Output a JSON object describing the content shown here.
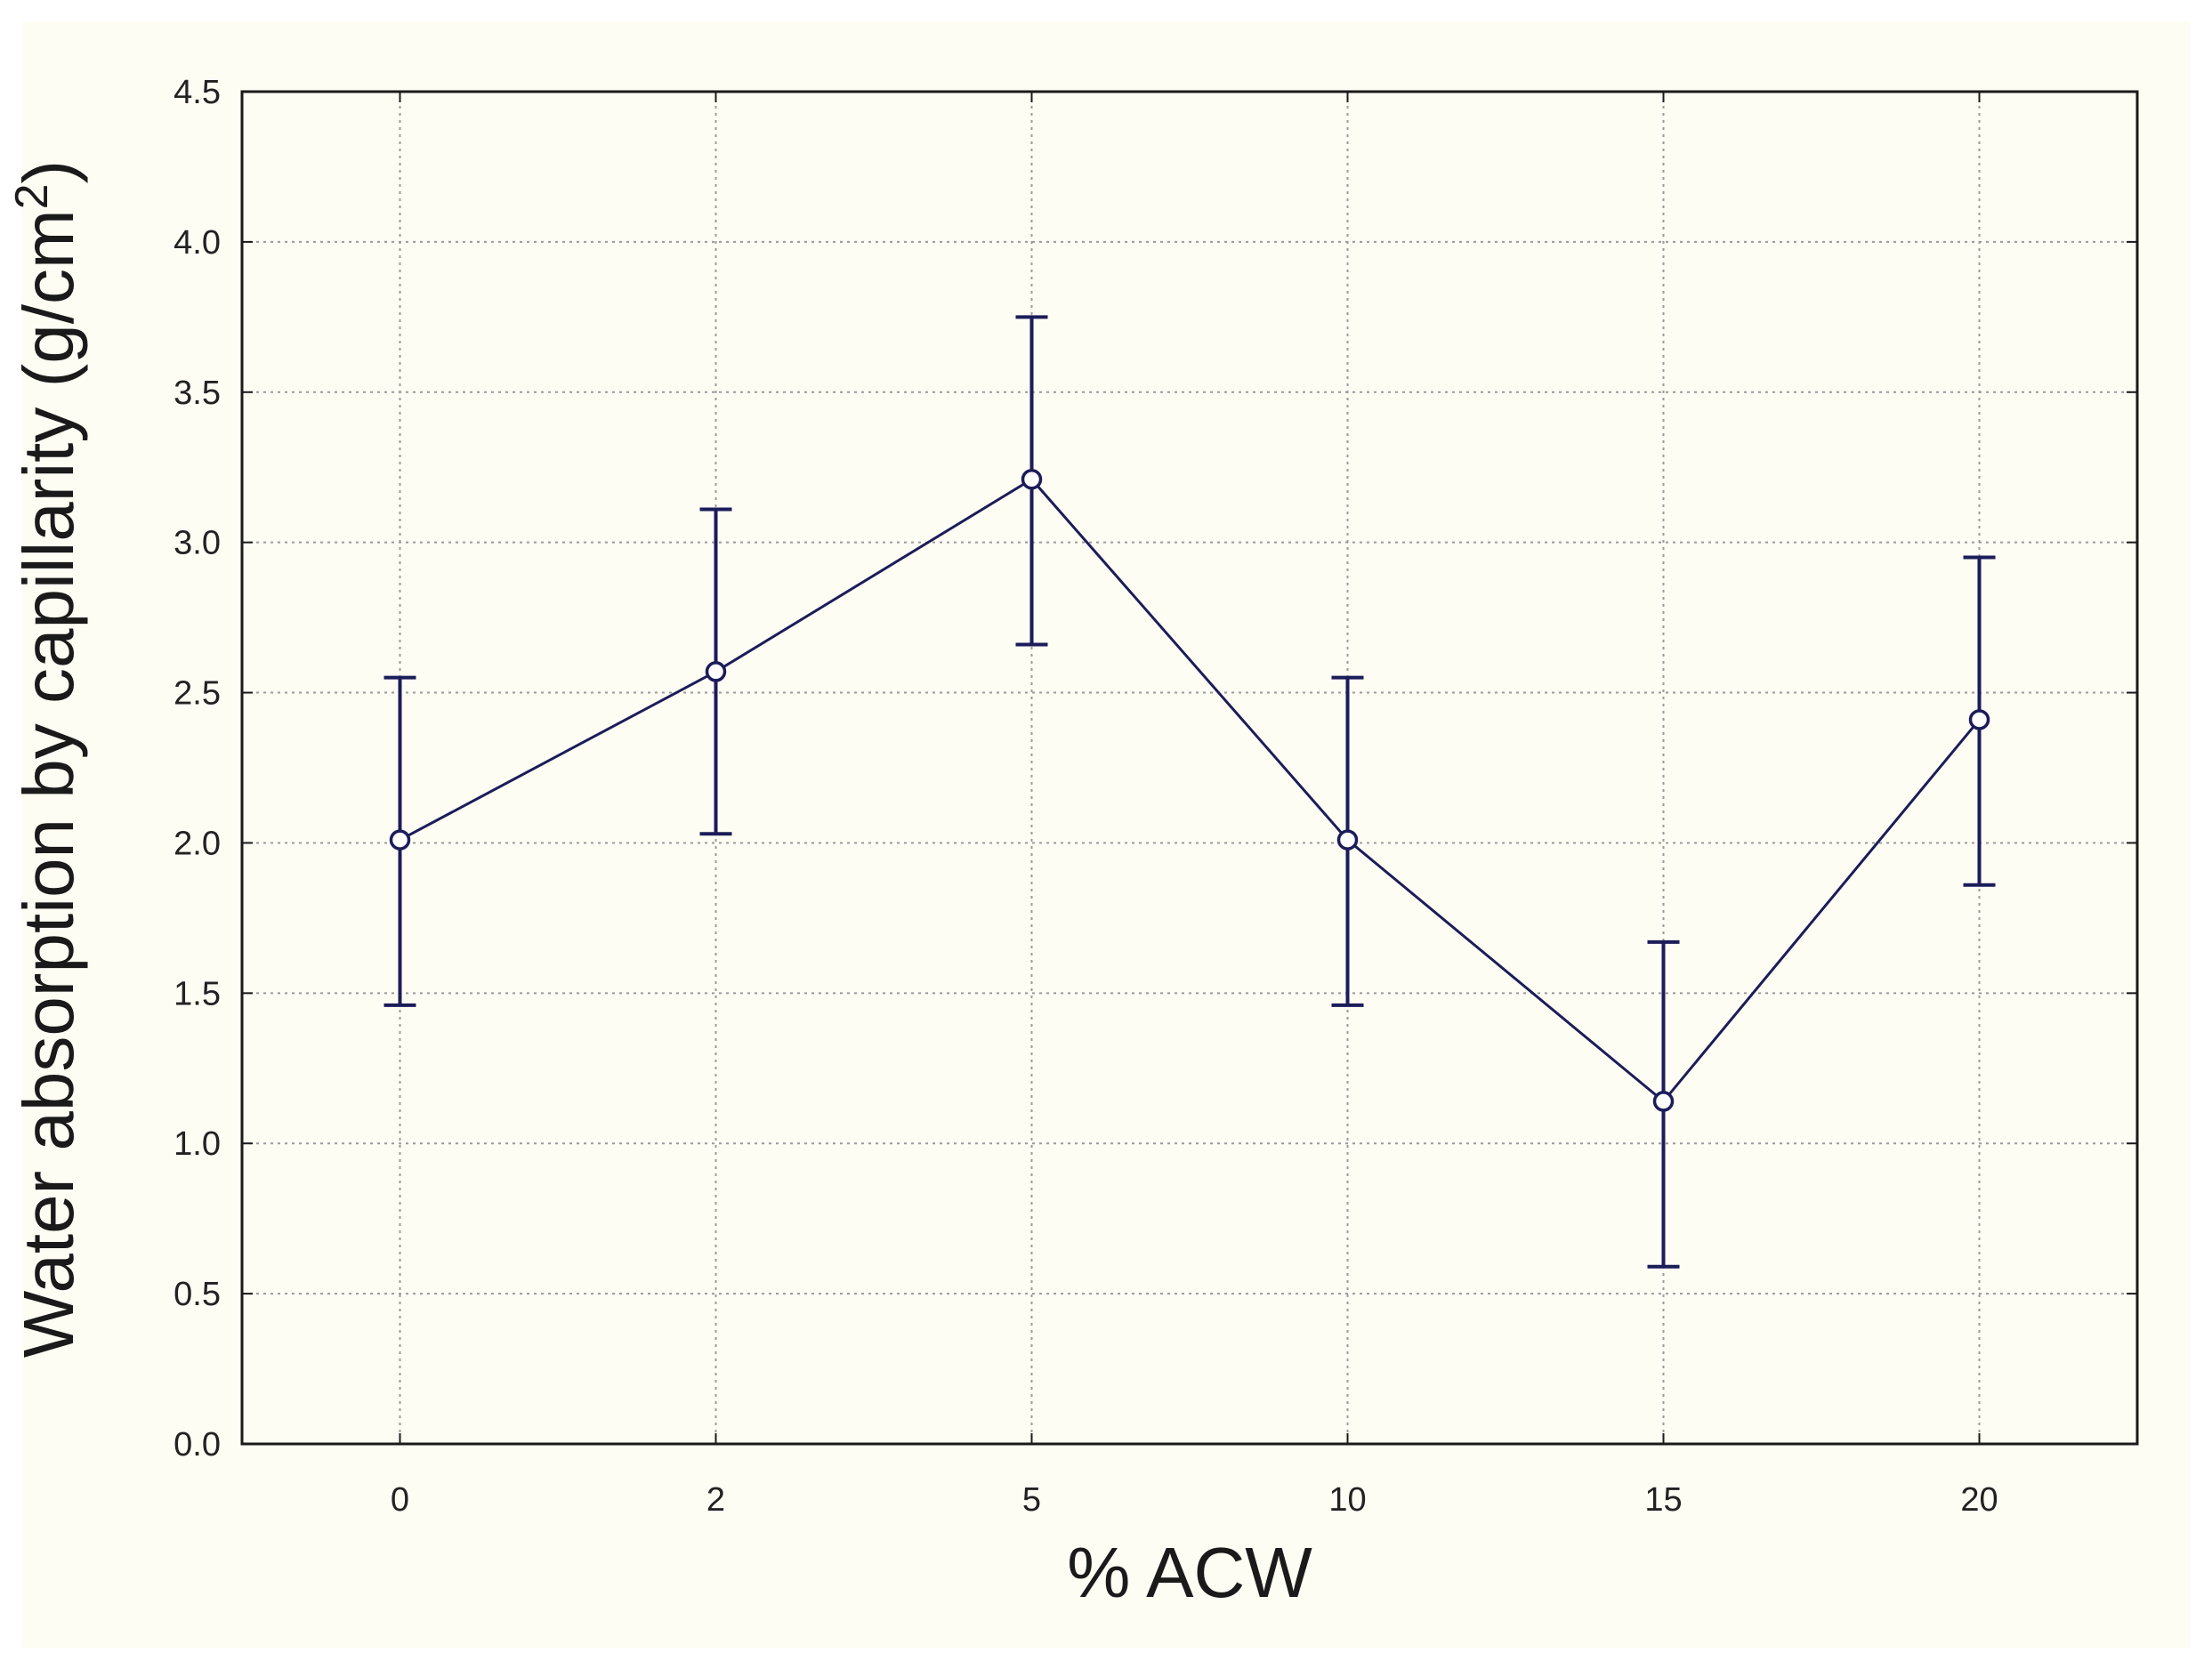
{
  "chart_data": {
    "type": "line",
    "title": "",
    "xlabel": "% ACW",
    "ylabel": "Water absorption by capillarity (g/cm",
    "ylabel_superscript": "2",
    "ylabel_suffix": ")",
    "categories": [
      "0",
      "2",
      "5",
      "10",
      "15",
      "20"
    ],
    "y_ticks": [
      "0.0",
      "0.5",
      "1.0",
      "1.5",
      "2.0",
      "2.5",
      "3.0",
      "3.5",
      "4.0",
      "4.5"
    ],
    "ylim": [
      0,
      4.5
    ],
    "grid": true,
    "series": [
      {
        "values": [
          2.01,
          2.57,
          3.21,
          2.01,
          1.14,
          2.41
        ],
        "error_low": [
          1.46,
          2.03,
          2.66,
          1.46,
          0.59,
          1.86
        ],
        "error_high": [
          2.55,
          3.11,
          3.75,
          2.55,
          1.67,
          2.95
        ],
        "color": "#1c1c5a"
      }
    ]
  }
}
